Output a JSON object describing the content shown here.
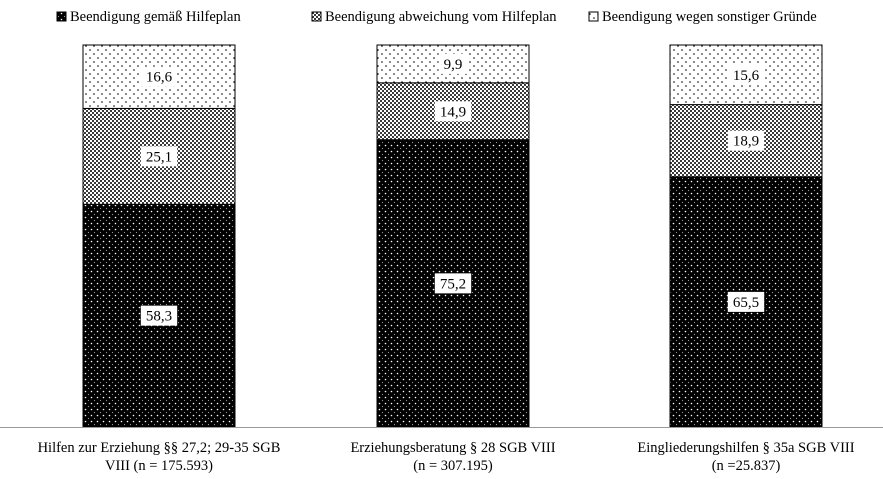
{
  "chart_data": {
    "type": "bar",
    "stacked": true,
    "percent_stacked": true,
    "categories": [
      [
        "Hilfen zur Erziehung §§ 27,2; 29-35 SGB",
        "VIII (n = 175.593)"
      ],
      [
        "Erziehungsberatung § 28 SGB VIII",
        "(n = 307.195)"
      ],
      [
        "Eingliederungshilfen § 35a SGB VIII",
        "(n =25.837)"
      ]
    ],
    "series": [
      {
        "name": "Beendigung gemäß Hilfeplan",
        "values": [
          58.3,
          75.2,
          65.5
        ],
        "labels": [
          "58,3",
          "75,2",
          "65,5"
        ],
        "pattern": "dense-dots",
        "color": "#000000"
      },
      {
        "name": "Beendigung abweichung vom Hilfeplan",
        "values": [
          25.1,
          14.9,
          18.9
        ],
        "labels": [
          "25,1",
          "14,9",
          "18,9"
        ],
        "pattern": "checker",
        "color": "#7a7a7a"
      },
      {
        "name": "Beendigung wegen sonstiger Gründe",
        "values": [
          16.6,
          9.9,
          15.6
        ],
        "labels": [
          "16,6",
          "9,9",
          "15,6"
        ],
        "pattern": "sparse-dots",
        "color": "#ffffff"
      }
    ],
    "ylim": [
      0,
      100
    ],
    "grid": false,
    "legend_position": "top",
    "title": "",
    "xlabel": "",
    "ylabel": ""
  }
}
